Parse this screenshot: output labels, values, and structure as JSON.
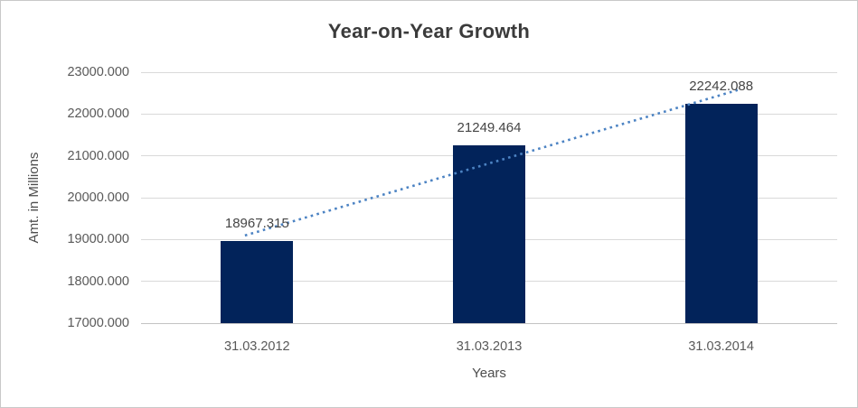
{
  "window": {
    "background": "#ffffff",
    "border_color": "#c9c9c9"
  },
  "chart_data": {
    "type": "bar",
    "title": "Year-on-Year Growth",
    "xlabel": "Years",
    "ylabel": "Amt. in Millions",
    "categories": [
      "31.03.2012",
      "31.03.2013",
      "31.03.2014"
    ],
    "values": [
      18967.315,
      21249.464,
      22242.088
    ],
    "data_labels": [
      "18967.315",
      "21249.464",
      "22242.088"
    ],
    "ylim": [
      17000,
      23000
    ],
    "ytick_values": [
      17000,
      18000,
      19000,
      20000,
      21000,
      22000,
      23000
    ],
    "ytick_labels": [
      "17000.000",
      "18000.000",
      "19000.000",
      "20000.000",
      "21000.000",
      "22000.000",
      "23000.000"
    ],
    "grid": true,
    "legend": "none",
    "trendline": {
      "type": "linear",
      "style": "dotted"
    },
    "colors": {
      "bar": "#02235a",
      "trendline": "#4c83c3",
      "gridline": "#d9d9d9",
      "axis_line": "#c3c3c3",
      "title_text": "#3b3b3b",
      "tick_text": "#595959",
      "label_text": "#454545"
    }
  }
}
